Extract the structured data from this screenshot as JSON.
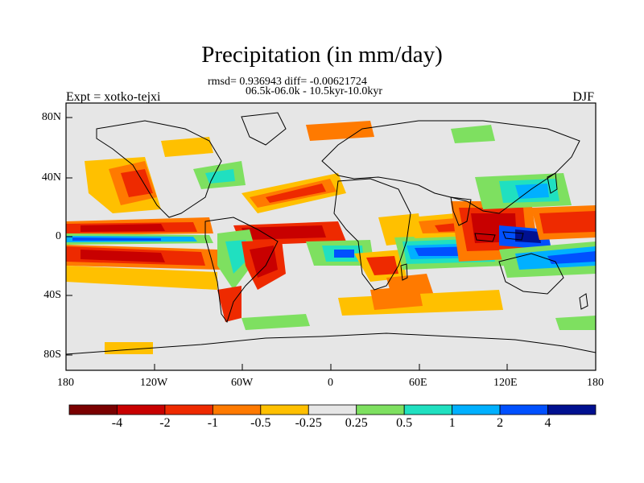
{
  "title": "Precipitation (in mm/day)",
  "stats_line": "rmsd= 0.936943 diff= -0.00621724",
  "period_line": "06.5k-06.0k - 10.5kyr-10.0kyr",
  "experiment": "Expt = xotko-tejxi",
  "season": "DJF",
  "map": {
    "projection": "cylindrical-equidistant",
    "lon_range": [
      -180,
      180
    ],
    "lat_range": [
      -90,
      90
    ],
    "x_ticks": [
      "180",
      "120W",
      "60W",
      "0",
      "60E",
      "120E",
      "180"
    ],
    "y_ticks": [
      "80N",
      "40N",
      "0",
      "40S",
      "80S"
    ],
    "background_color": "#e6e6e6",
    "coast_color": "#000000"
  },
  "colorbar": {
    "colors": [
      "#7a0000",
      "#c80000",
      "#ee2a00",
      "#ff7a00",
      "#ffc000",
      "#e6e6e6",
      "#7ee060",
      "#20e0c0",
      "#00b0ff",
      "#0050ff",
      "#001090"
    ],
    "labels": [
      "-4",
      "-2",
      "-1",
      "-0.5",
      "-0.25",
      "0.25",
      "0.5",
      "1",
      "2",
      "4"
    ]
  }
}
